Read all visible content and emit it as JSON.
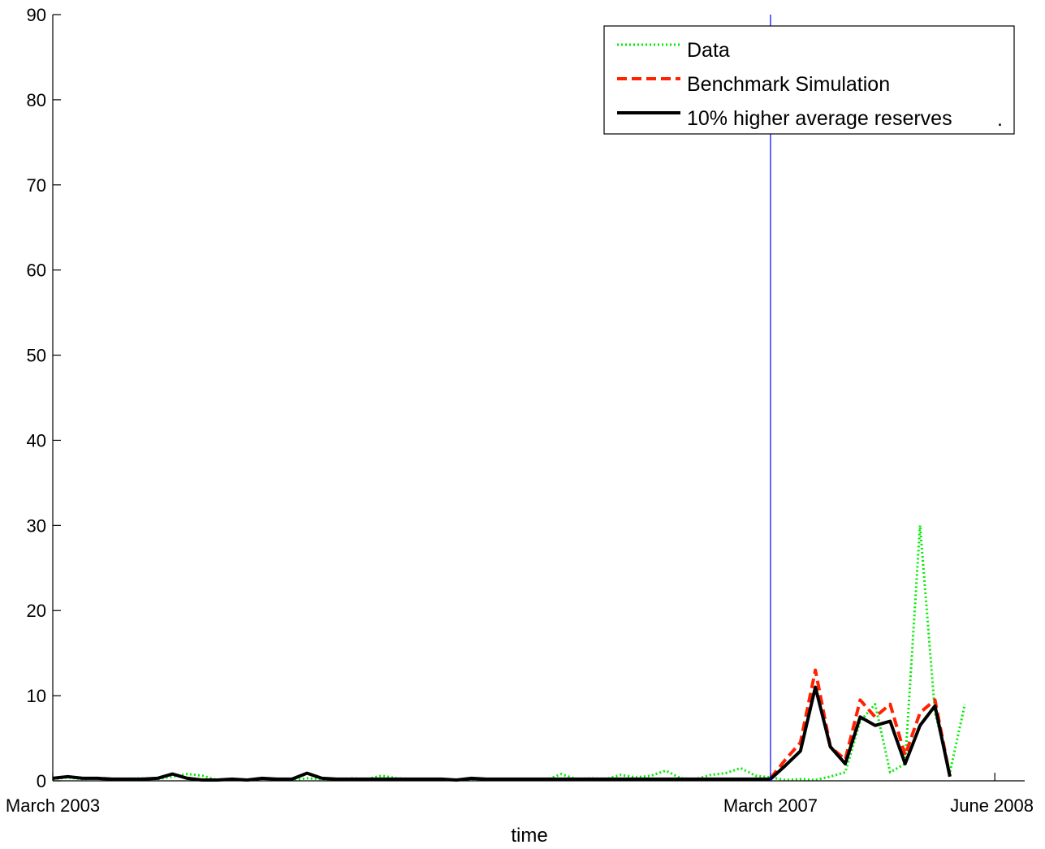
{
  "chart_data": {
    "type": "line",
    "title": "",
    "xlabel": "time",
    "ylabel": "",
    "ylim": [
      0,
      90
    ],
    "yticks": [
      0,
      10,
      20,
      30,
      40,
      50,
      60,
      70,
      80,
      90
    ],
    "xlim": [
      "2003-03",
      "2008-08"
    ],
    "xticks": [
      {
        "x": "2003-03",
        "label": "March 2003"
      },
      {
        "x": "2007-03",
        "label": "March 2007"
      },
      {
        "x": "2008-06",
        "label": "June 2008"
      }
    ],
    "vline": {
      "x": "2007-03",
      "color": "#0000ff"
    },
    "grid": false,
    "legend_position": "top-right",
    "legend_extra_text": ".",
    "series": [
      {
        "name": "Data",
        "color": "#00ee00",
        "style": "dotted",
        "points": [
          [
            "2003-03",
            0.2
          ],
          [
            "2003-04",
            0.4
          ],
          [
            "2003-05",
            0.2
          ],
          [
            "2003-06",
            0.3
          ],
          [
            "2003-07",
            0.1
          ],
          [
            "2003-08",
            0.2
          ],
          [
            "2003-09",
            0.3
          ],
          [
            "2003-10",
            0.2
          ],
          [
            "2003-11",
            0.5
          ],
          [
            "2003-12",
            0.8
          ],
          [
            "2004-01",
            0.6
          ],
          [
            "2004-02",
            0.1
          ],
          [
            "2004-03",
            0.2
          ],
          [
            "2004-04",
            0.1
          ],
          [
            "2004-05",
            0.3
          ],
          [
            "2004-06",
            0.2
          ],
          [
            "2004-07",
            0.1
          ],
          [
            "2004-08",
            0.3
          ],
          [
            "2004-09",
            0.2
          ],
          [
            "2004-10",
            0.1
          ],
          [
            "2004-11",
            0.3
          ],
          [
            "2004-12",
            0.2
          ],
          [
            "2005-01",
            0.6
          ],
          [
            "2005-02",
            0.3
          ],
          [
            "2005-03",
            0.2
          ],
          [
            "2005-04",
            0.1
          ],
          [
            "2005-05",
            0.2
          ],
          [
            "2005-06",
            0.1
          ],
          [
            "2005-07",
            0.2
          ],
          [
            "2005-08",
            0.1
          ],
          [
            "2005-09",
            0.2
          ],
          [
            "2005-10",
            0.1
          ],
          [
            "2005-11",
            0.2
          ],
          [
            "2005-12",
            0.1
          ],
          [
            "2006-01",
            0.8
          ],
          [
            "2006-02",
            0.2
          ],
          [
            "2006-03",
            0.3
          ],
          [
            "2006-04",
            0.2
          ],
          [
            "2006-05",
            0.7
          ],
          [
            "2006-06",
            0.4
          ],
          [
            "2006-07",
            0.6
          ],
          [
            "2006-08",
            1.2
          ],
          [
            "2006-09",
            0.3
          ],
          [
            "2006-10",
            0.2
          ],
          [
            "2006-11",
            0.7
          ],
          [
            "2006-12",
            0.9
          ],
          [
            "2007-01",
            1.5
          ],
          [
            "2007-02",
            0.6
          ],
          [
            "2007-03",
            0.4
          ],
          [
            "2007-04",
            0.1
          ],
          [
            "2007-05",
            0.2
          ],
          [
            "2007-06",
            0.1
          ],
          [
            "2007-07",
            0.5
          ],
          [
            "2007-08",
            1.0
          ],
          [
            "2007-09",
            7.0
          ],
          [
            "2007-10",
            9.0
          ],
          [
            "2007-11",
            1.0
          ],
          [
            "2007-12",
            2.0
          ],
          [
            "2008-01",
            30.0
          ],
          [
            "2008-02",
            8.0
          ],
          [
            "2008-03",
            1.0
          ],
          [
            "2008-04",
            9.0
          ]
        ]
      },
      {
        "name": "Benchmark Simulation",
        "color": "#ff2200",
        "style": "dashed",
        "points": [
          [
            "2007-03",
            0.3
          ],
          [
            "2007-04",
            2.5
          ],
          [
            "2007-05",
            4.5
          ],
          [
            "2007-06",
            13.0
          ],
          [
            "2007-07",
            4.0
          ],
          [
            "2007-08",
            2.5
          ],
          [
            "2007-09",
            9.5
          ],
          [
            "2007-10",
            7.5
          ],
          [
            "2007-11",
            9.0
          ],
          [
            "2007-12",
            3.0
          ],
          [
            "2008-01",
            8.0
          ],
          [
            "2008-02",
            9.5
          ],
          [
            "2008-03",
            0.5
          ]
        ]
      },
      {
        "name": "10% higher average reserves",
        "color": "#000000",
        "style": "solid",
        "points": [
          [
            "2003-03",
            0.3
          ],
          [
            "2003-04",
            0.5
          ],
          [
            "2003-05",
            0.3
          ],
          [
            "2003-06",
            0.3
          ],
          [
            "2003-07",
            0.2
          ],
          [
            "2003-08",
            0.2
          ],
          [
            "2003-09",
            0.2
          ],
          [
            "2003-10",
            0.3
          ],
          [
            "2003-11",
            0.8
          ],
          [
            "2003-12",
            0.3
          ],
          [
            "2004-01",
            0.1
          ],
          [
            "2004-02",
            0.1
          ],
          [
            "2004-03",
            0.2
          ],
          [
            "2004-04",
            0.1
          ],
          [
            "2004-05",
            0.3
          ],
          [
            "2004-06",
            0.2
          ],
          [
            "2004-07",
            0.2
          ],
          [
            "2004-08",
            0.9
          ],
          [
            "2004-09",
            0.3
          ],
          [
            "2004-10",
            0.2
          ],
          [
            "2004-11",
            0.2
          ],
          [
            "2004-12",
            0.2
          ],
          [
            "2005-01",
            0.2
          ],
          [
            "2005-02",
            0.2
          ],
          [
            "2005-03",
            0.2
          ],
          [
            "2005-04",
            0.2
          ],
          [
            "2005-05",
            0.2
          ],
          [
            "2005-06",
            0.1
          ],
          [
            "2005-07",
            0.3
          ],
          [
            "2005-08",
            0.2
          ],
          [
            "2005-09",
            0.2
          ],
          [
            "2005-10",
            0.2
          ],
          [
            "2005-11",
            0.2
          ],
          [
            "2005-12",
            0.2
          ],
          [
            "2006-01",
            0.2
          ],
          [
            "2006-02",
            0.2
          ],
          [
            "2006-03",
            0.2
          ],
          [
            "2006-04",
            0.2
          ],
          [
            "2006-05",
            0.2
          ],
          [
            "2006-06",
            0.2
          ],
          [
            "2006-07",
            0.2
          ],
          [
            "2006-08",
            0.2
          ],
          [
            "2006-09",
            0.2
          ],
          [
            "2006-10",
            0.2
          ],
          [
            "2006-11",
            0.2
          ],
          [
            "2006-12",
            0.2
          ],
          [
            "2007-01",
            0.2
          ],
          [
            "2007-02",
            0.2
          ],
          [
            "2007-03",
            0.2
          ],
          [
            "2007-04",
            1.8
          ],
          [
            "2007-05",
            3.5
          ],
          [
            "2007-06",
            11.0
          ],
          [
            "2007-07",
            4.0
          ],
          [
            "2007-08",
            2.0
          ],
          [
            "2007-09",
            7.5
          ],
          [
            "2007-10",
            6.5
          ],
          [
            "2007-11",
            7.0
          ],
          [
            "2007-12",
            2.0
          ],
          [
            "2008-01",
            6.5
          ],
          [
            "2008-02",
            8.8
          ],
          [
            "2008-03",
            0.5
          ]
        ]
      }
    ]
  }
}
